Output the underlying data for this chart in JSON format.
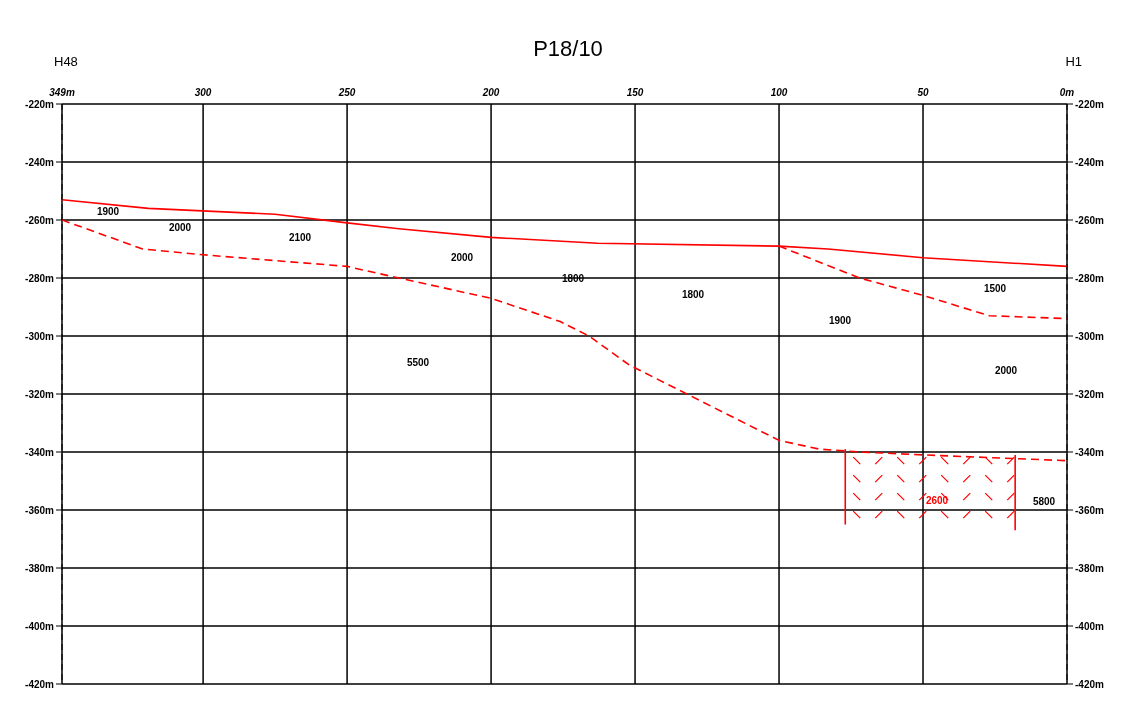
{
  "chart_data": {
    "type": "line",
    "title": "P18/10",
    "annotations": [
      "H48",
      "H1",
      "1900",
      "2000",
      "2100",
      "2000",
      "1800",
      "1800",
      "1500",
      "1900",
      "2000",
      "5500",
      "5800",
      "2600"
    ],
    "xlim": [
      349,
      0
    ],
    "xticks": [
      {
        "value": 349,
        "label": "349m"
      },
      300,
      250,
      200,
      150,
      100,
      50,
      {
        "value": 0,
        "label": "0m"
      }
    ],
    "ylim": [
      -420,
      -220
    ],
    "yticks": [
      {
        "value": -420,
        "label": "-420m"
      },
      {
        "value": -400,
        "label": "-400m"
      },
      {
        "value": -380,
        "label": "-380m"
      },
      {
        "value": -360,
        "label": "-360m"
      },
      {
        "value": -340,
        "label": "-340m"
      },
      {
        "value": -320,
        "label": "-320m"
      },
      {
        "value": -300,
        "label": "-300m"
      },
      {
        "value": -280,
        "label": "-280m"
      },
      {
        "value": -260,
        "label": "-260m"
      },
      {
        "value": -240,
        "label": "-240m"
      },
      {
        "value": -220,
        "label": "-220m"
      }
    ],
    "y2lim": [
      -420,
      -220
    ],
    "y2ticks": [
      {
        "value": -420,
        "label": "-420m"
      },
      {
        "value": -400,
        "label": "-400m"
      },
      {
        "value": -380,
        "label": "-380m"
      },
      {
        "value": -360,
        "label": "-360m"
      },
      {
        "value": -340,
        "label": "-340m"
      },
      {
        "value": -320,
        "label": "-320m"
      },
      {
        "value": -300,
        "label": "-300m"
      },
      {
        "value": -280,
        "label": "-280m"
      },
      {
        "value": -260,
        "label": "-260m"
      },
      {
        "value": -240,
        "label": "-240m"
      },
      {
        "value": -220,
        "label": "-220m"
      }
    ],
    "grid": true,
    "marker": "none",
    "series": [
      {
        "type": "line",
        "color": "#ff0000",
        "line_style": "solid",
        "x": [
          349,
          319,
          275,
          250,
          232,
          200,
          163,
          100,
          83,
          50,
          0
        ],
        "values": [
          -253,
          -256,
          -258,
          -261,
          -263,
          -266,
          -268,
          -269,
          -270,
          -273,
          -276
        ]
      },
      {
        "type": "line",
        "color": "#ff0000",
        "line_style": "dashed",
        "x": [
          349,
          321,
          300,
          250,
          232,
          200,
          176,
          166,
          152,
          128,
          110,
          100,
          86,
          72,
          50,
          0
        ],
        "values": [
          -260,
          -270,
          -272,
          -276,
          -280,
          -287,
          -295,
          -300,
          -310,
          -322,
          -331,
          -336,
          -339,
          -340,
          -341,
          -343
        ]
      },
      {
        "type": "line",
        "color": "#ff0000",
        "line_style": "dashed",
        "x": [
          100,
          72,
          50,
          27,
          0
        ],
        "values": [
          -269,
          -280,
          -286,
          -293,
          -294
        ]
      },
      {
        "type": "line",
        "color": "#ff0000",
        "line_style": "solid",
        "x": [
          77,
          77
        ],
        "values": [
          -339,
          -365
        ]
      },
      {
        "type": "line",
        "color": "#ff0000",
        "line_style": "solid",
        "x": [
          18,
          18
        ],
        "values": [
          -341,
          -367
        ]
      }
    ]
  }
}
